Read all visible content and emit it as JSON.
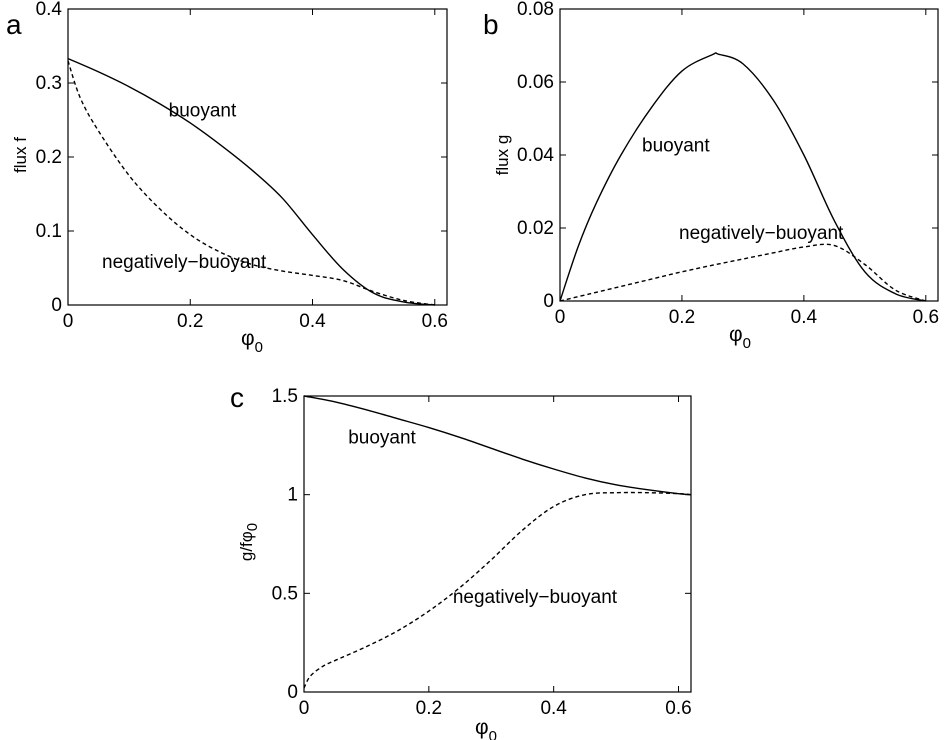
{
  "chart_data": [
    {
      "type": "line",
      "panel_label": "a",
      "xlabel": "φ",
      "xlabel_subscript": "0",
      "ylabel": "flux f",
      "xlim": [
        0,
        0.62
      ],
      "ylim": [
        0,
        0.4
      ],
      "xticks": [
        "0",
        "0.2",
        "0.4",
        "0.6"
      ],
      "yticks": [
        "0",
        "0.1",
        "0.2",
        "0.3",
        "0.4"
      ],
      "grid": false,
      "series": [
        {
          "name": "buoyant",
          "style": "solid",
          "x": [
            0,
            0.05,
            0.1,
            0.15,
            0.2,
            0.25,
            0.3,
            0.35,
            0.4,
            0.45,
            0.5,
            0.55,
            0.6
          ],
          "y": [
            0.333,
            0.315,
            0.295,
            0.272,
            0.246,
            0.216,
            0.183,
            0.145,
            0.095,
            0.048,
            0.016,
            0.004,
            0.0
          ]
        },
        {
          "name": "negatively−buoyant",
          "style": "dashed",
          "x": [
            0,
            0.02,
            0.05,
            0.1,
            0.15,
            0.2,
            0.25,
            0.3,
            0.35,
            0.4,
            0.45,
            0.5,
            0.55,
            0.6
          ],
          "y": [
            0.33,
            0.28,
            0.235,
            0.175,
            0.13,
            0.095,
            0.071,
            0.055,
            0.046,
            0.04,
            0.033,
            0.018,
            0.006,
            0.0
          ]
        }
      ],
      "annotations": [
        {
          "text": "buoyant",
          "x": 0.22,
          "y": 0.255
        },
        {
          "text": "negatively−buoyant",
          "x": 0.19,
          "y": 0.05
        }
      ]
    },
    {
      "type": "line",
      "panel_label": "b",
      "xlabel": "φ",
      "xlabel_subscript": "0",
      "ylabel": "flux g",
      "xlim": [
        0,
        0.62
      ],
      "ylim": [
        0,
        0.08
      ],
      "xticks": [
        "0",
        "0.2",
        "0.4",
        "0.6"
      ],
      "yticks": [
        "0",
        "0.02",
        "0.04",
        "0.06",
        "0.08"
      ],
      "grid": false,
      "series": [
        {
          "name": "buoyant",
          "style": "solid",
          "x": [
            0,
            0.03,
            0.06,
            0.1,
            0.15,
            0.2,
            0.25,
            0.26,
            0.3,
            0.35,
            0.4,
            0.45,
            0.5,
            0.55,
            0.6
          ],
          "y": [
            0.0,
            0.015,
            0.027,
            0.04,
            0.053,
            0.063,
            0.0675,
            0.0676,
            0.065,
            0.055,
            0.04,
            0.022,
            0.008,
            0.002,
            0.0
          ]
        },
        {
          "name": "negatively−buoyant",
          "style": "dashed",
          "x": [
            0,
            0.05,
            0.1,
            0.15,
            0.2,
            0.25,
            0.3,
            0.35,
            0.4,
            0.45,
            0.5,
            0.55,
            0.6
          ],
          "y": [
            0.0,
            0.002,
            0.004,
            0.006,
            0.008,
            0.0098,
            0.0115,
            0.0132,
            0.0148,
            0.0152,
            0.01,
            0.003,
            0.0
          ]
        }
      ],
      "annotations": [
        {
          "text": "buoyant",
          "x": 0.19,
          "y": 0.041
        },
        {
          "text": "negatively−buoyant",
          "x": 0.33,
          "y": 0.017
        }
      ]
    },
    {
      "type": "line",
      "panel_label": "c",
      "xlabel": "φ",
      "xlabel_subscript": "0",
      "ylabel": "g/fφ",
      "ylabel_subscript": "0",
      "xlim": [
        0,
        0.62
      ],
      "ylim": [
        0,
        1.5
      ],
      "xticks": [
        "0",
        "0.2",
        "0.4",
        "0.6"
      ],
      "yticks": [
        "0",
        "0.5",
        "1",
        "1.5"
      ],
      "grid": false,
      "series": [
        {
          "name": "buoyant",
          "style": "solid",
          "x": [
            0,
            0.05,
            0.1,
            0.15,
            0.2,
            0.25,
            0.3,
            0.35,
            0.4,
            0.45,
            0.5,
            0.55,
            0.6,
            0.62
          ],
          "y": [
            1.5,
            1.47,
            1.43,
            1.385,
            1.34,
            1.29,
            1.235,
            1.18,
            1.13,
            1.085,
            1.05,
            1.025,
            1.005,
            1.0
          ]
        },
        {
          "name": "negatively−buoyant",
          "style": "dashed",
          "x": [
            0,
            0.01,
            0.03,
            0.05,
            0.1,
            0.15,
            0.2,
            0.25,
            0.3,
            0.35,
            0.4,
            0.45,
            0.5,
            0.55,
            0.6,
            0.62
          ],
          "y": [
            0.02,
            0.08,
            0.13,
            0.16,
            0.23,
            0.31,
            0.41,
            0.53,
            0.67,
            0.82,
            0.94,
            1.0,
            1.01,
            1.01,
            1.005,
            1.0
          ]
        }
      ],
      "annotations": [
        {
          "text": "buoyant",
          "x": 0.125,
          "y": 1.26
        },
        {
          "text": "negatively−buoyant",
          "x": 0.37,
          "y": 0.45
        }
      ]
    }
  ]
}
